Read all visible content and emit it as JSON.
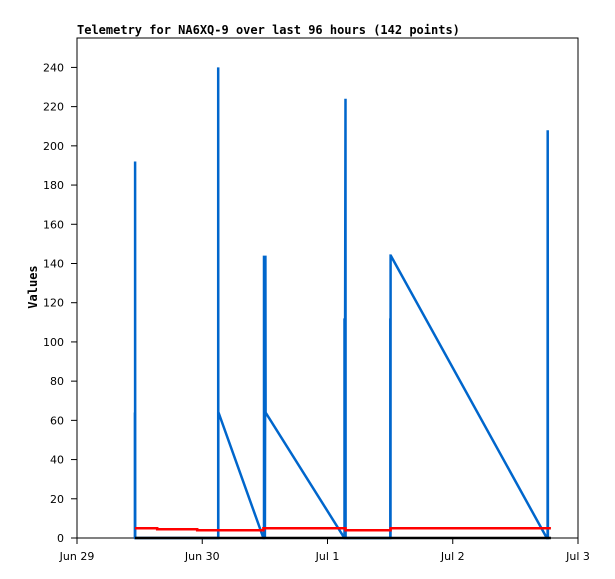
{
  "chart_data": {
    "type": "line",
    "title": "Telemetry for NA6XQ-9 over last 96 hours (142 points)",
    "xlabel": "",
    "ylabel": "Values",
    "xlim": [
      "06-29T00:00",
      "07-03T00:00"
    ],
    "ylim": [
      0,
      255
    ],
    "x_ticks": [
      {
        "x": "06-29T00:00",
        "label": "Jun 29"
      },
      {
        "x": "06-30T00:00",
        "label": "Jun 30"
      },
      {
        "x": "07-01T00:00",
        "label": "Jul 1"
      },
      {
        "x": "07-02T00:00",
        "label": "Jul 2"
      },
      {
        "x": "07-03T00:00",
        "label": "Jul 3"
      }
    ],
    "y_ticks": [
      0,
      20,
      40,
      60,
      80,
      100,
      120,
      140,
      160,
      180,
      200,
      220,
      240
    ],
    "grid": false,
    "legend": "none",
    "series": [
      {
        "color": "#0066cc",
        "points": [
          [
            "06-29T11:06",
            0
          ],
          [
            "06-29T11:06",
            64
          ],
          [
            "06-29T11:08",
            0
          ],
          [
            "06-29T11:08",
            192
          ],
          [
            "06-29T11:09",
            0
          ],
          [
            "06-30T03:03",
            0
          ],
          [
            "06-30T03:03",
            240
          ],
          [
            "06-30T03:04",
            0
          ],
          [
            "06-30T03:05",
            32
          ],
          [
            "06-30T03:05",
            64
          ],
          [
            "06-30T03:07",
            64
          ],
          [
            "06-30T11:43",
            0
          ],
          [
            "06-30T11:50",
            0
          ],
          [
            "06-30T11:50",
            144
          ],
          [
            "06-30T12:00",
            0
          ],
          [
            "06-30T12:06",
            144
          ],
          [
            "06-30T12:08",
            64
          ],
          [
            "07-01T03:14",
            0
          ],
          [
            "07-01T03:16",
            0
          ],
          [
            "07-01T03:16",
            112
          ],
          [
            "07-01T03:18",
            0
          ],
          [
            "07-01T03:27",
            224
          ],
          [
            "07-01T03:28",
            0
          ],
          [
            "07-01T12:02",
            0
          ],
          [
            "07-01T12:02",
            112
          ],
          [
            "07-01T12:04",
            0
          ],
          [
            "07-01T12:06",
            144
          ],
          [
            "07-01T12:08",
            144
          ],
          [
            "07-02T18:01",
            0
          ],
          [
            "07-02T18:10",
            0
          ],
          [
            "07-02T18:12",
            208
          ],
          [
            "07-02T18:14",
            0
          ]
        ]
      },
      {
        "color": "#ff0000",
        "points": [
          [
            "06-29T11:06",
            5
          ],
          [
            "06-29T15:22",
            5
          ],
          [
            "06-29T15:22",
            4.5
          ],
          [
            "06-29T23:02",
            4.5
          ],
          [
            "06-29T23:02",
            4
          ],
          [
            "06-30T11:43",
            4
          ],
          [
            "06-30T11:43",
            5
          ],
          [
            "07-01T03:27",
            5
          ],
          [
            "07-01T03:27",
            4
          ],
          [
            "07-01T12:06",
            4
          ],
          [
            "07-01T12:06",
            5
          ],
          [
            "07-02T18:49",
            5
          ]
        ]
      },
      {
        "color": "#000000",
        "points": [
          [
            "06-29T11:06",
            0
          ],
          [
            "07-02T18:49",
            0
          ]
        ]
      }
    ]
  }
}
